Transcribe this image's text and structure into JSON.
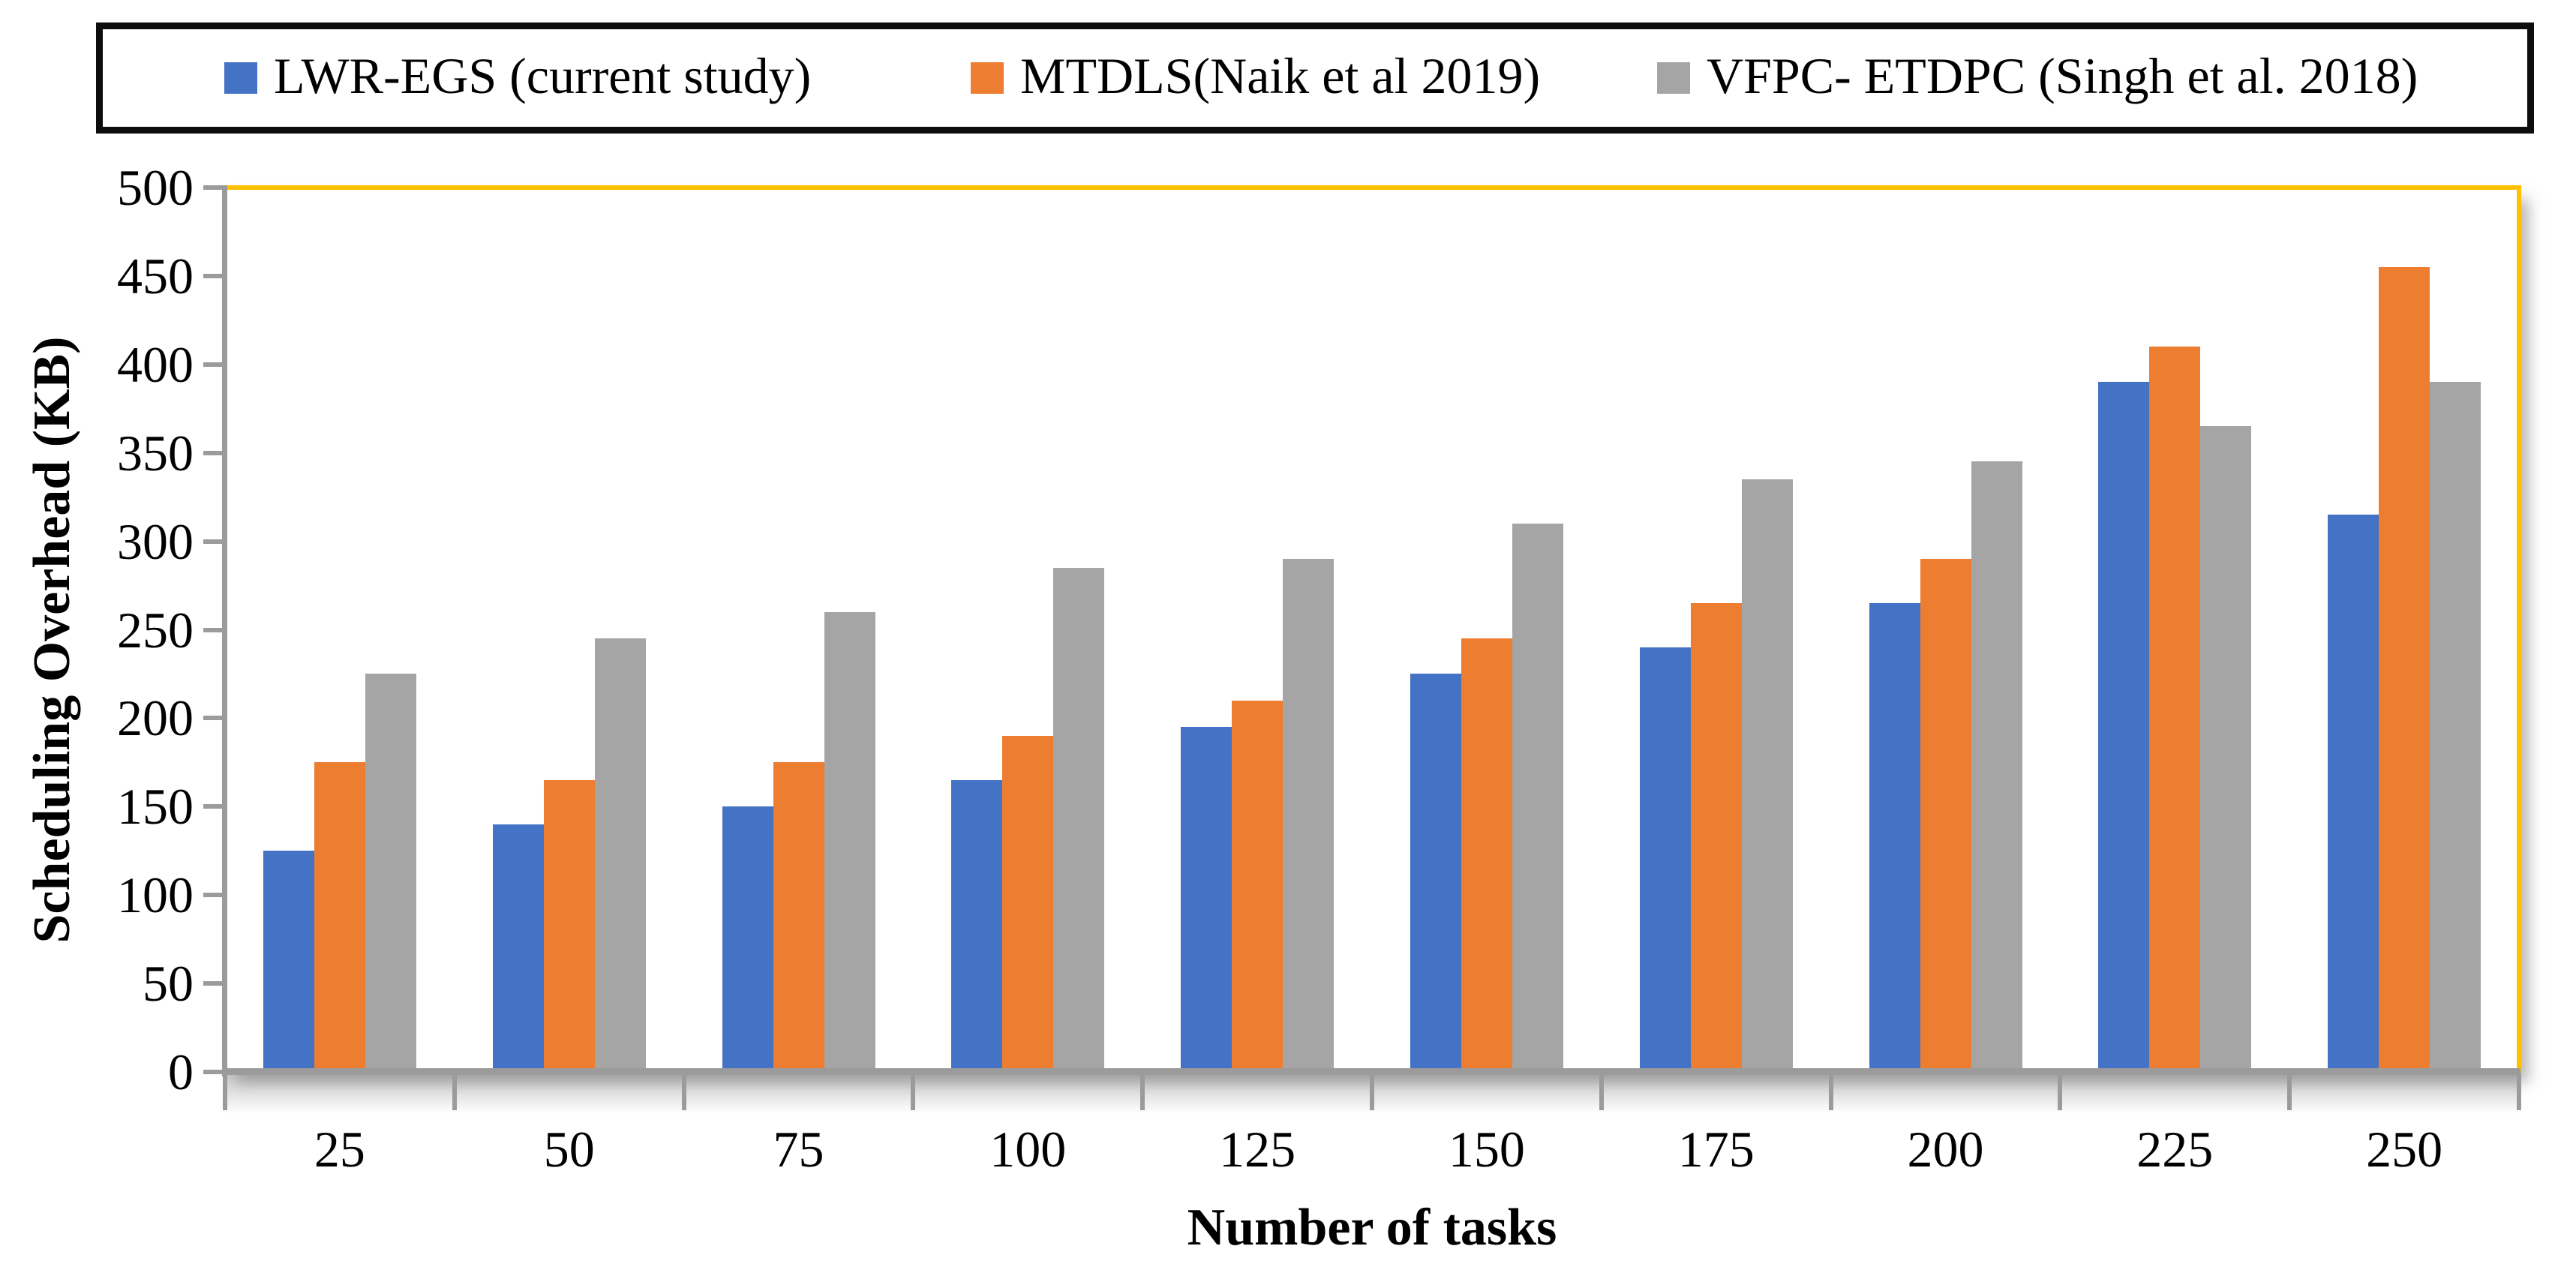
{
  "legend": {
    "items": [
      {
        "label": "LWR-EGS (current study)",
        "color": "#4472C4"
      },
      {
        "label": "MTDLS(Naik et al 2019)",
        "color": "#ED7D31"
      },
      {
        "label": "VFPC- ETDPC (Singh et al. 2018)",
        "color": "#A5A5A5"
      }
    ]
  },
  "axes": {
    "y_title": "Scheduling Overhead (KB)",
    "x_title": "Number of tasks",
    "yticks": [
      0,
      50,
      100,
      150,
      200,
      250,
      300,
      350,
      400,
      450,
      500
    ],
    "axis_color": "#9B9B9B",
    "plot_border_color": "#FFC000"
  },
  "chart_data": {
    "type": "bar",
    "title": "",
    "categories": [
      "25",
      "50",
      "75",
      "100",
      "125",
      "150",
      "175",
      "200",
      "225",
      "250"
    ],
    "series": [
      {
        "name": "LWR-EGS (current study)",
        "color": "#4472C4",
        "values": [
          125,
          140,
          150,
          165,
          195,
          225,
          240,
          265,
          390,
          315
        ]
      },
      {
        "name": "MTDLS(Naik et al 2019)",
        "color": "#ED7D31",
        "values": [
          175,
          165,
          175,
          190,
          210,
          245,
          265,
          290,
          410,
          455
        ]
      },
      {
        "name": "VFPC- ETDPC (Singh et al. 2018)",
        "color": "#A5A5A5",
        "values": [
          225,
          245,
          260,
          285,
          290,
          310,
          335,
          345,
          365,
          390
        ]
      }
    ],
    "xlabel": "Number of tasks",
    "ylabel": "Scheduling Overhead (KB)",
    "ylim": [
      0,
      500
    ],
    "ytick_step": 50,
    "grid": false,
    "legend_position": "top"
  }
}
